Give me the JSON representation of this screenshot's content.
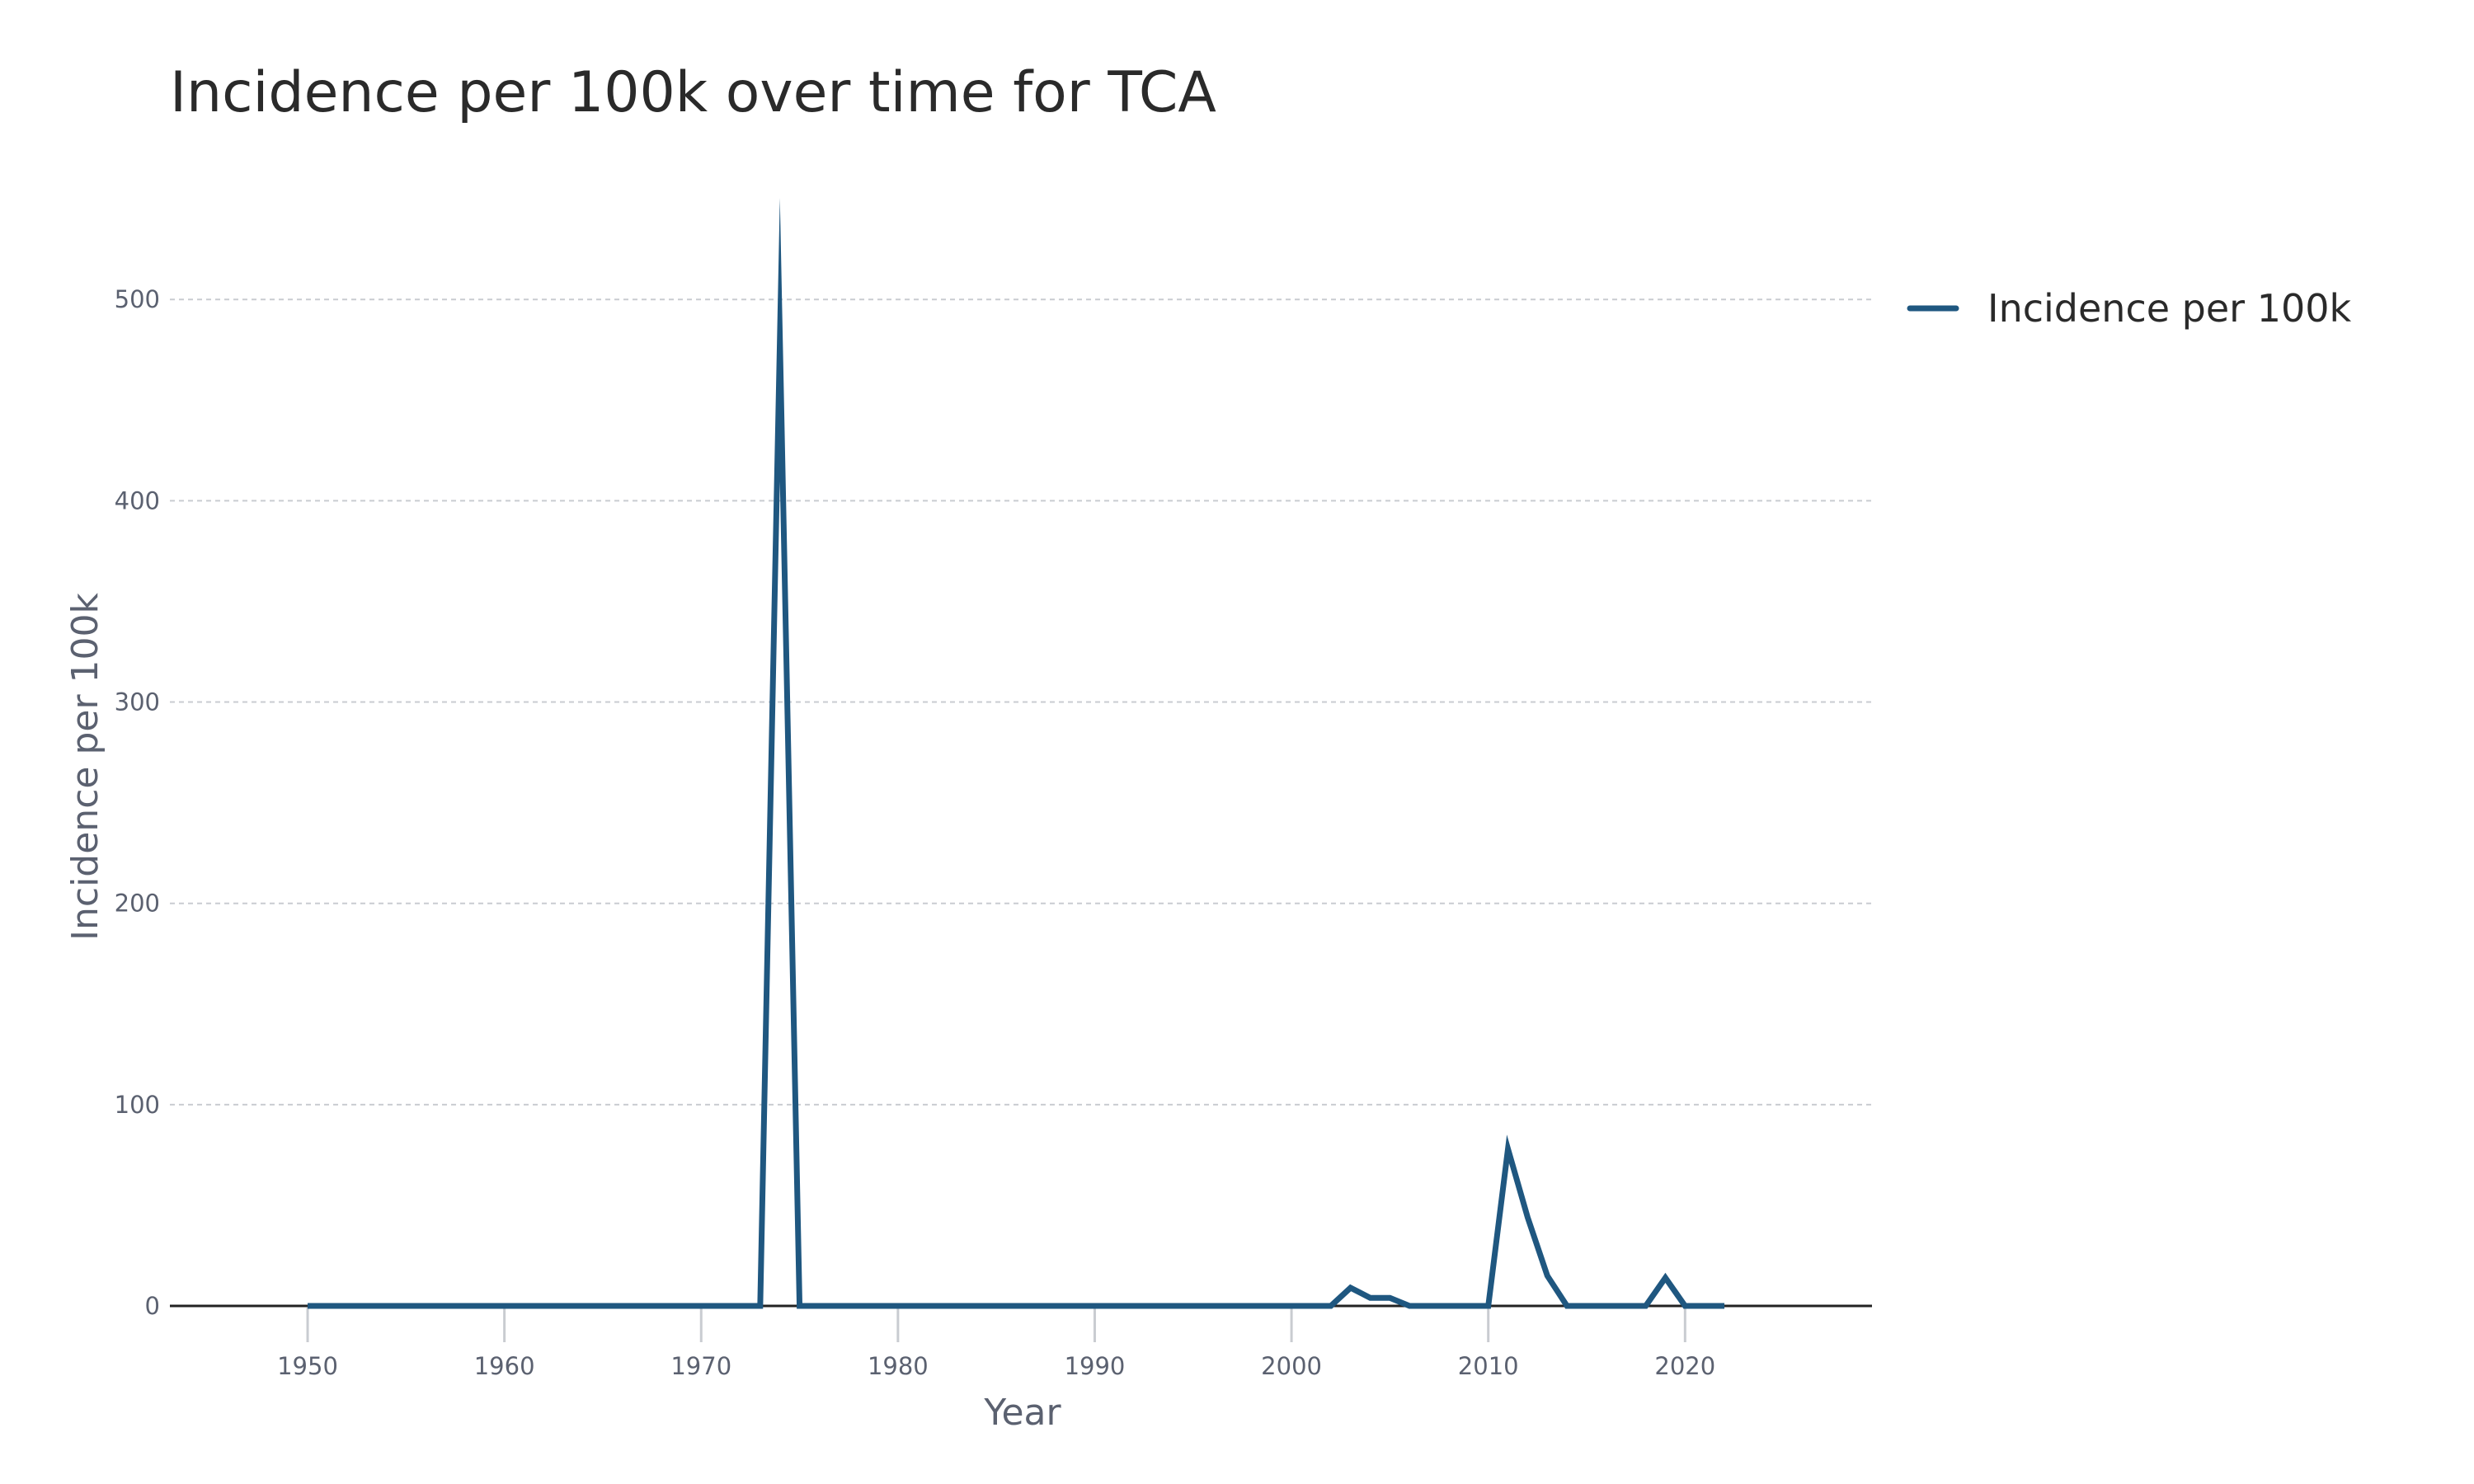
{
  "chart_data": {
    "type": "line",
    "title": "Incidence per 100k over time for TCA",
    "xlabel": "Year",
    "ylabel": "Incidence per 100k",
    "xlim": [
      1943,
      2029.5
    ],
    "ylim": [
      0,
      530
    ],
    "xticks": [
      1950,
      1960,
      1970,
      1980,
      1990,
      2000,
      2010,
      2020
    ],
    "yticks": [
      0,
      100,
      200,
      300,
      400,
      500
    ],
    "grid": true,
    "legend_position": "top-right",
    "series": [
      {
        "name": "Incidence per 100k",
        "color": "#1f5780",
        "x": [
          1950,
          1951,
          1952,
          1953,
          1954,
          1955,
          1956,
          1957,
          1958,
          1959,
          1960,
          1961,
          1962,
          1963,
          1964,
          1965,
          1966,
          1967,
          1968,
          1969,
          1970,
          1971,
          1972,
          1973,
          1974,
          1975,
          1976,
          1977,
          1978,
          1979,
          1980,
          1981,
          1982,
          1983,
          1984,
          1985,
          1986,
          1987,
          1988,
          1989,
          1990,
          1991,
          1992,
          1993,
          1994,
          1995,
          1996,
          1997,
          1998,
          1999,
          2000,
          2001,
          2002,
          2003,
          2004,
          2005,
          2006,
          2007,
          2008,
          2009,
          2010,
          2011,
          2012,
          2013,
          2014,
          2015,
          2016,
          2017,
          2018,
          2019,
          2020,
          2021,
          2022
        ],
        "values": [
          0,
          0,
          0,
          0,
          0,
          0,
          0,
          0,
          0,
          0,
          0,
          0,
          0,
          0,
          0,
          0,
          0,
          0,
          0,
          0,
          0,
          0,
          0,
          0,
          480,
          0,
          0,
          0,
          0,
          0,
          0,
          0,
          0,
          0,
          0,
          0,
          0,
          0,
          0,
          0,
          0,
          0,
          0,
          0,
          0,
          0,
          0,
          0,
          0,
          0,
          0,
          0,
          0,
          9,
          4,
          4,
          0,
          0,
          0,
          0,
          0,
          78,
          44,
          15,
          0,
          0,
          0,
          0,
          0,
          14,
          0,
          0,
          0
        ]
      }
    ]
  }
}
